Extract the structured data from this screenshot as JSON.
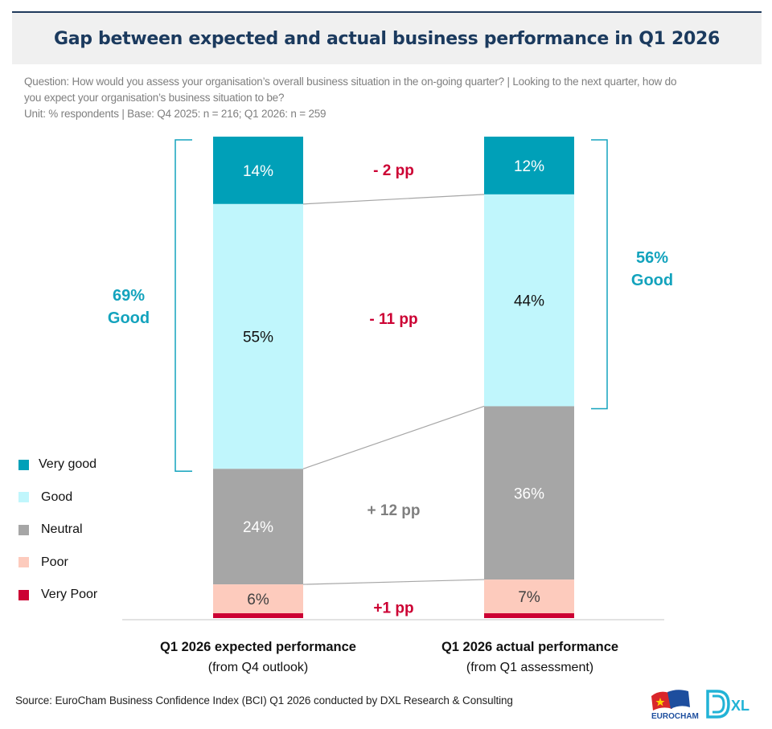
{
  "header": {
    "title": "Gap between expected and actual business performance in Q1 2026",
    "question_line1": "Question: How would you assess your organisation’s overall business situation in the on-going quarter? | Looking to the next quarter, how do",
    "question_line2": "you expect your organisation’s business situation to be?",
    "unit_line": "Unit: % respondents | Base: Q4 2025: n = 216; Q1 2026: n = 259"
  },
  "chart_data": {
    "type": "bar",
    "stacked": true,
    "title": "Gap between expected and actual business performance in Q1 2026",
    "xlabel": "",
    "ylabel": "% respondents",
    "ylim": [
      0,
      100
    ],
    "grid": false,
    "legend_position": "left",
    "categories": [
      {
        "main": "Q1 2026 expected performance",
        "sub": "(from Q4 outlook)"
      },
      {
        "main": "Q1 2026 actual performance",
        "sub": "(from Q1 assessment)"
      }
    ],
    "series": [
      {
        "name": "Very good",
        "color": "#00a0b8",
        "label_color": "#ffffff",
        "values": [
          14,
          12
        ],
        "labels": [
          "14%",
          "12%"
        ]
      },
      {
        "name": "Good",
        "color": "#c0f6fc",
        "label_color": "#111111",
        "values": [
          55,
          44
        ],
        "labels": [
          "55%",
          "44%"
        ]
      },
      {
        "name": "Neutral",
        "color": "#a6a6a6",
        "label_color": "#ffffff",
        "values": [
          24,
          36
        ],
        "labels": [
          "24%",
          "36%"
        ]
      },
      {
        "name": "Poor",
        "color": "#fdcbbd",
        "label_color": "#404040",
        "values": [
          6,
          7
        ],
        "labels": [
          "6%",
          "7%"
        ]
      },
      {
        "name": "Very Poor",
        "color": "#cc0033",
        "label_color": "#ffffff",
        "values": [
          1,
          0.5
        ],
        "labels": [
          "",
          ""
        ]
      }
    ],
    "gaps": [
      {
        "series": "Very good",
        "label": "- 2 pp",
        "color": "#cc0033"
      },
      {
        "series": "Good",
        "label": "- 11 pp",
        "color": "#cc0033"
      },
      {
        "series": "Neutral",
        "label": "+ 12 pp",
        "color": "#7f7f7f"
      },
      {
        "series": "Poor",
        "label": "+1 pp",
        "color": "#cc0033"
      }
    ],
    "brackets": [
      {
        "bar": 0,
        "side": "left",
        "value_label": "69%",
        "text_label": "Good",
        "color": "#13a3bd"
      },
      {
        "bar": 1,
        "side": "right",
        "value_label": "56%",
        "text_label": "Good",
        "color": "#13a3bd"
      }
    ]
  },
  "legend": {
    "items": [
      {
        "label": "Very good",
        "color": "#00a0b8"
      },
      {
        "label": "Good",
        "color": "#c0f6fc"
      },
      {
        "label": "Neutral",
        "color": "#a6a6a6"
      },
      {
        "label": "Poor",
        "color": "#fdcbbd"
      },
      {
        "label": "Very Poor",
        "color": "#cc0033"
      }
    ]
  },
  "footer": {
    "source": "Source: EuroCham Business Confidence Index (BCI) Q1 2026 conducted by DXL Research & Consulting",
    "logos": [
      {
        "name": "eurocham-logo",
        "text": "EUROCHAM"
      },
      {
        "name": "dxl-logo",
        "text": "XL"
      }
    ]
  }
}
